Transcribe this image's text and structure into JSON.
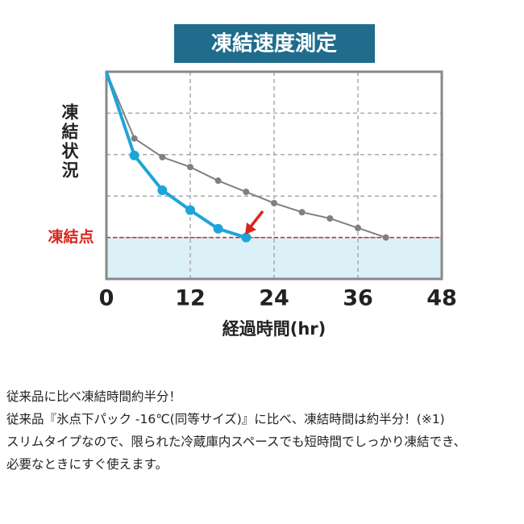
{
  "chart_data": {
    "type": "line",
    "title": "凍結速度測定",
    "y_label": "凍結状況",
    "x_label": "経過時間(hr)",
    "freeze_label": "凍結点",
    "freeze_value": 1,
    "xlim": [
      0,
      48
    ],
    "xticks": [
      0,
      12,
      24,
      36,
      48
    ],
    "ylim": [
      0,
      5
    ],
    "yticks": [
      1,
      2,
      3,
      4
    ],
    "grid": true,
    "series": [
      {
        "color": "#808080",
        "x": [
          0,
          4,
          8,
          12,
          16,
          20,
          24,
          28,
          32,
          36,
          40
        ],
        "values": [
          5.0,
          3.39,
          2.94,
          2.7,
          2.37,
          2.1,
          1.83,
          1.61,
          1.46,
          1.23,
          1.0
        ]
      },
      {
        "color": "#1ea5d8",
        "x": [
          0,
          4,
          8,
          12,
          16,
          20
        ],
        "values": [
          5.0,
          2.98,
          2.14,
          1.66,
          1.21,
          1.0
        ]
      }
    ]
  },
  "description": [
    "従来品に比べ凍結時間約半分！",
    "従来品『氷点下パック -16℃(同等サイズ)』に比べ、凍結時間は約半分！(※1)",
    "スリムタイプなので、限られた冷蔵庫内スペースでも短時間でしっかり凍結でき、",
    "必要なときにすぐ使えます。"
  ]
}
